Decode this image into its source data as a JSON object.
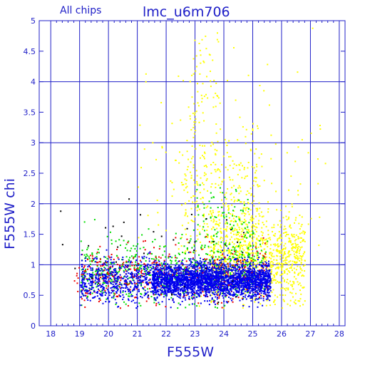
{
  "chart_data": {
    "type": "scatter",
    "title": "lmc_u6m706",
    "subtitle": "All chips",
    "xlabel": "F555W",
    "ylabel": "F555W chi",
    "xlim": [
      17.6,
      28.2
    ],
    "ylim": [
      0,
      5
    ],
    "xticks": [
      "18",
      "19",
      "20",
      "21",
      "22",
      "23",
      "24",
      "25",
      "26",
      "27",
      "28"
    ],
    "yticks": [
      "0",
      "0.5",
      "1",
      "1.5",
      "2",
      "2.5",
      "3",
      "3.5",
      "4",
      "4.5",
      "5"
    ],
    "grid": true,
    "series": [
      {
        "color": "#ffff00",
        "clusters": [
          {
            "n": 900,
            "x_range": [
              23.5,
              26.8
            ],
            "y_mean": 1.15,
            "y_sd": 0.35
          },
          {
            "n": 350,
            "x_range": [
              22.5,
              25.2
            ],
            "y_mean": 2.0,
            "y_sd": 0.6
          },
          {
            "n": 120,
            "x_range": [
              21.0,
              27.5
            ],
            "y_mean": 2.5,
            "y_sd": 1.0
          },
          {
            "n": 80,
            "x_range": [
              22.8,
              23.8
            ],
            "y_mean": 3.8,
            "y_sd": 0.6
          }
        ]
      },
      {
        "color": "#00dd00",
        "clusters": [
          {
            "n": 700,
            "x_range": [
              19.0,
              25.5
            ],
            "y_mean": 0.9,
            "y_sd": 0.25
          },
          {
            "n": 120,
            "x_range": [
              23.0,
              25.0
            ],
            "y_mean": 1.6,
            "y_sd": 0.35
          }
        ]
      },
      {
        "color": "#ee0000",
        "clusters": [
          {
            "n": 500,
            "x_range": [
              18.8,
              25.5
            ],
            "y_mean": 0.85,
            "y_sd": 0.22
          }
        ]
      },
      {
        "color": "#0000ee",
        "clusters": [
          {
            "n": 2600,
            "x_range": [
              21.5,
              25.6
            ],
            "y_mean": 0.75,
            "y_sd": 0.14
          },
          {
            "n": 500,
            "x_range": [
              19.0,
              21.5
            ],
            "y_mean": 0.75,
            "y_sd": 0.18
          }
        ]
      },
      {
        "color": "#000000",
        "clusters": [
          {
            "n": 40,
            "x_range": [
              18.3,
              25.0
            ],
            "y_mean": 1.3,
            "y_sd": 0.5
          }
        ]
      }
    ]
  }
}
